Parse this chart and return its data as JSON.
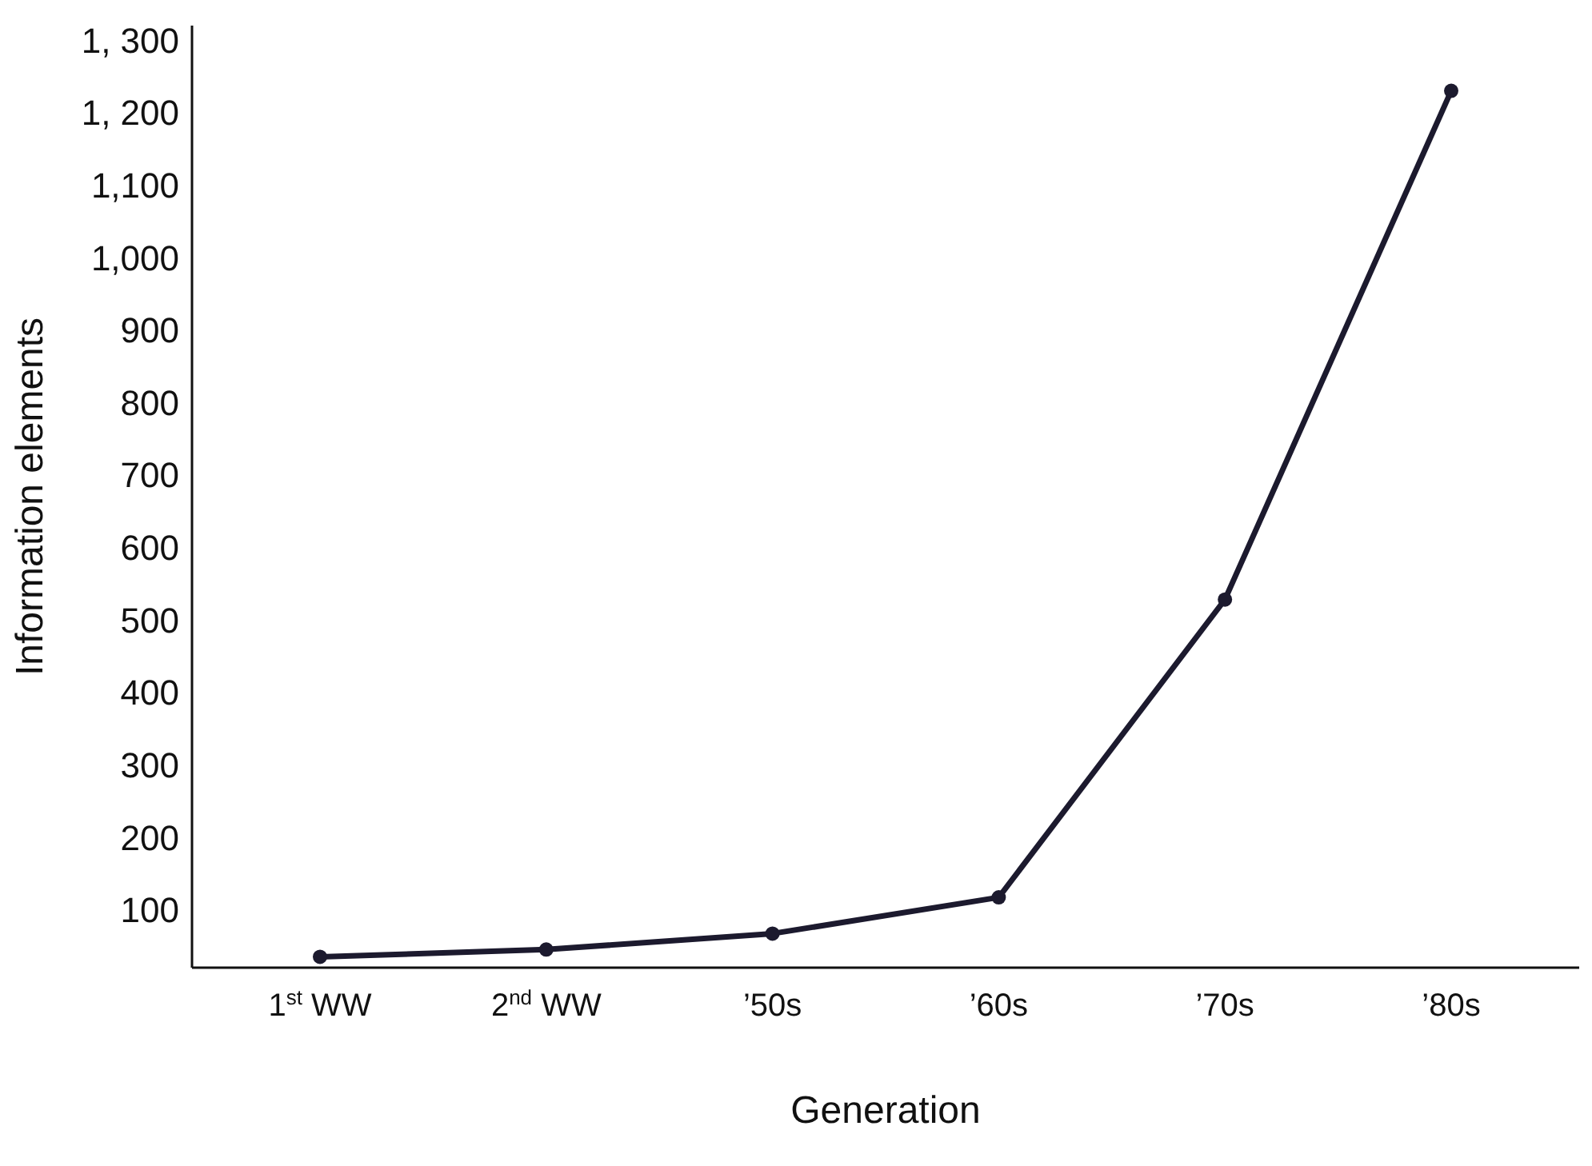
{
  "chart_data": {
    "type": "line",
    "xlabel": "Generation",
    "ylabel": "Information elements",
    "categories": [
      "1$^{st}$ WW",
      "2$^{nd}$ WW",
      "’50s",
      "’60s",
      "’70s",
      "’80s"
    ],
    "series": [
      {
        "color": "#1c1a2e",
        "values": [
          35,
          45,
          67,
          117,
          528,
          1230
        ]
      }
    ],
    "ylim": [
      20,
      1320
    ],
    "yticks": [
      100,
      200,
      300,
      400,
      500,
      600,
      700,
      800,
      900,
      {
        "value": 1000,
        "label": "1,000"
      },
      {
        "value": 1100,
        "label": "1,100"
      },
      {
        "value": 1200,
        "label": "1, 200"
      },
      {
        "value": 1300,
        "label": "1, 300"
      }
    ],
    "grid": false,
    "legend": false,
    "marker": "circle",
    "line_style": "solid"
  }
}
